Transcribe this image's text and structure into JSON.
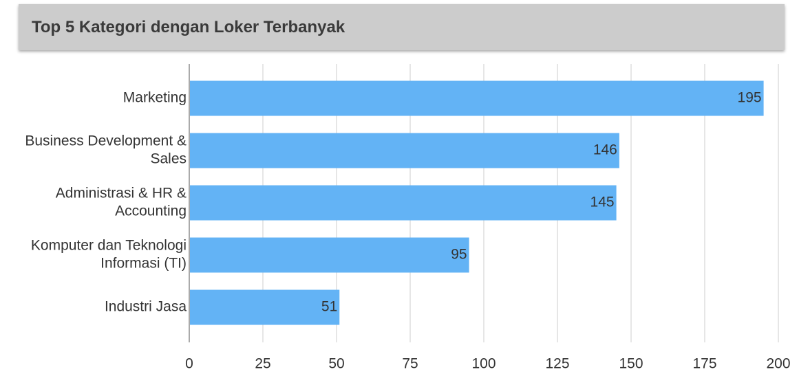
{
  "chart_data": {
    "type": "bar",
    "orientation": "horizontal",
    "title": "Top 5 Kategori dengan Loker Terbanyak",
    "categories": [
      [
        "Marketing"
      ],
      [
        "Business Development &",
        "Sales"
      ],
      [
        "Administrasi & HR &",
        "Accounting"
      ],
      [
        "Komputer dan Teknologi",
        "Informasi (TI)"
      ],
      [
        "Industri Jasa"
      ]
    ],
    "values": [
      195,
      146,
      145,
      95,
      51
    ],
    "value_labels": [
      "195",
      "146",
      "145",
      "95",
      "51"
    ],
    "xlim": [
      0,
      200
    ],
    "xticks": [
      0,
      25,
      50,
      75,
      100,
      125,
      150,
      175,
      200
    ],
    "xtick_labels": [
      "0",
      "25",
      "50",
      "75",
      "100",
      "125",
      "150",
      "175",
      "200"
    ],
    "bar_color": "#63b3f5",
    "grid": true,
    "legend": "none"
  }
}
